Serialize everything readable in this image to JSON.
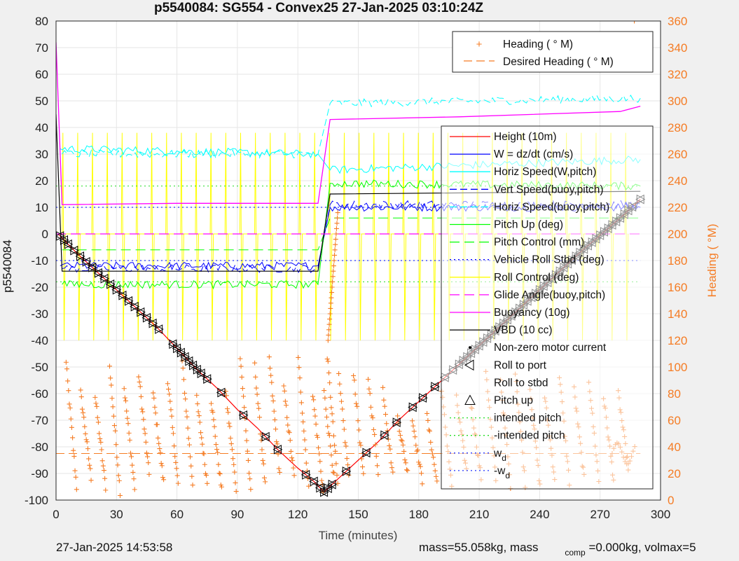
{
  "title": "p5540084: SG554 - Convex25 27-Jan-2025 03:10:24Z",
  "footer": {
    "date": "27-Jan-2025 14:53:58",
    "mass_text": "mass=55.058kg, mass",
    "comp_sub": "comp",
    "volmax_text": "=0.000kg, volmax=5"
  },
  "colors": {
    "height": "#ff0000",
    "w": "#0000ff",
    "horiz_speed_w": "#00ffff",
    "vert_speed_buoy": "#0000ff",
    "horiz_speed_buoy": "#00ffff",
    "pitch_up": "#00ff00",
    "pitch_control": "#00ff00",
    "roll": "#0000ff",
    "roll_control": "#ffff00",
    "glide_angle": "#ff00ff",
    "buoyancy": "#ff00ff",
    "vbd": "#000000",
    "heading": "#f57c24"
  },
  "chart_data": {
    "type": "line",
    "xlabel": "Time (minutes)",
    "ylabel_left": "p5540084",
    "ylabel_right": "Heading (  °M)",
    "xlim": [
      0,
      300
    ],
    "ylim_left": [
      -100,
      80
    ],
    "ylim_right": [
      0,
      360
    ],
    "xticks": [
      0,
      30,
      60,
      90,
      120,
      150,
      180,
      210,
      240,
      270,
      300
    ],
    "yticks_left": [
      -100,
      -90,
      -80,
      -70,
      -60,
      -50,
      -40,
      -30,
      -20,
      -10,
      0,
      10,
      20,
      30,
      40,
      50,
      60,
      70,
      80
    ],
    "yticks_right": [
      0,
      20,
      40,
      60,
      80,
      100,
      120,
      140,
      160,
      180,
      200,
      220,
      240,
      260,
      280,
      300,
      320,
      340,
      360
    ],
    "grid": true,
    "legend_right_axis": {
      "placement": "top-right",
      "entries": [
        "Heading (  ° M)",
        "Desired Heading (    ° M)"
      ]
    },
    "legend_left_axis": {
      "placement": "right",
      "entries": [
        "Height (10m)",
        "W = dz/dt (cm/s)",
        "Horiz Speed(W,pitch)",
        "Vert Speed(buoy,pitch)",
        "Horiz Speed(buoy,pitch)",
        "Pitch Up (deg)",
        "Pitch Control (mm)",
        "Vehicle Roll Stbd (deg)",
        "Roll Control (deg)",
        "Glide Angle(buoy,pitch)",
        "Buoyancy (10g)",
        "VBD (10 cc)",
        "Non-zero motor current",
        "Roll to port",
        "Roll to stbd",
        "Pitch up",
        "intended pitch",
        "-intended pitch",
        "w",
        "-w"
      ],
      "subscripts": {
        "18": "d",
        "19": "d"
      }
    },
    "series": [
      {
        "name": "Height (10m)",
        "x": [
          1,
          10,
          20,
          30,
          40,
          50,
          60,
          70,
          80,
          90,
          100,
          110,
          120,
          128,
          133,
          140,
          150,
          160,
          170,
          180,
          190,
          200,
          210,
          220,
          230,
          240,
          250,
          260,
          270,
          280,
          290
        ],
        "values": [
          0,
          -7,
          -14,
          -21,
          -28,
          -35,
          -43,
          -51,
          -58,
          -66,
          -73,
          -81,
          -88,
          -93,
          -97,
          -92,
          -85,
          -78,
          -70,
          -63,
          -56,
          -49,
          -42,
          -35,
          -28,
          -21,
          -14,
          -7,
          -0.5,
          6,
          13
        ]
      },
      {
        "name": "W = dz/dt (cm/s)",
        "x": [
          2,
          130,
          136,
          290
        ],
        "values": [
          -12,
          -12,
          10,
          10
        ]
      },
      {
        "name": "Horiz Speed(W,pitch)",
        "x": [
          2,
          130,
          136,
          290
        ],
        "values": [
          32,
          30,
          24,
          28
        ]
      },
      {
        "name": "Vert Speed(buoy,pitch)",
        "x": [
          3,
          130,
          136,
          290
        ],
        "values": [
          -13,
          -13,
          11,
          11
        ]
      },
      {
        "name": "Horiz Speed(buoy,pitch)",
        "x": [
          3,
          130,
          136,
          290
        ],
        "values": [
          30,
          30,
          49,
          51
        ]
      },
      {
        "name": "Pitch Up (deg)",
        "x": [
          3,
          130,
          136,
          290
        ],
        "values": [
          -19,
          -19,
          19,
          18
        ]
      },
      {
        "name": "Pitch Control (mm)",
        "x": [
          3,
          130,
          136,
          290
        ],
        "values": [
          -6,
          -6,
          6,
          6
        ]
      },
      {
        "name": "Buoyancy (10g)",
        "x": [
          0,
          3,
          60,
          130,
          136,
          200,
          280,
          290
        ],
        "values": [
          72,
          11,
          11.5,
          11.5,
          43,
          44,
          46,
          48
        ]
      },
      {
        "name": "VBD (10 cc)",
        "x": [
          0,
          3,
          130,
          136,
          290
        ],
        "values": [
          45,
          -14,
          -14,
          15,
          16
        ]
      },
      {
        "name": "Glide Angle(buoy,pitch)",
        "x": [
          0,
          290
        ],
        "values": [
          0,
          0
        ]
      },
      {
        "name": "intended pitch",
        "x": [
          0,
          290
        ],
        "values": [
          18,
          18
        ]
      },
      {
        "name": "-intended pitch",
        "x": [
          0,
          290
        ],
        "values": [
          -18,
          -18
        ]
      },
      {
        "name": "w",
        "x": [
          0,
          290
        ],
        "values": [
          10,
          10
        ]
      },
      {
        "name": "-w",
        "x": [
          0,
          290
        ],
        "values": [
          -10,
          -10
        ]
      }
    ]
  }
}
